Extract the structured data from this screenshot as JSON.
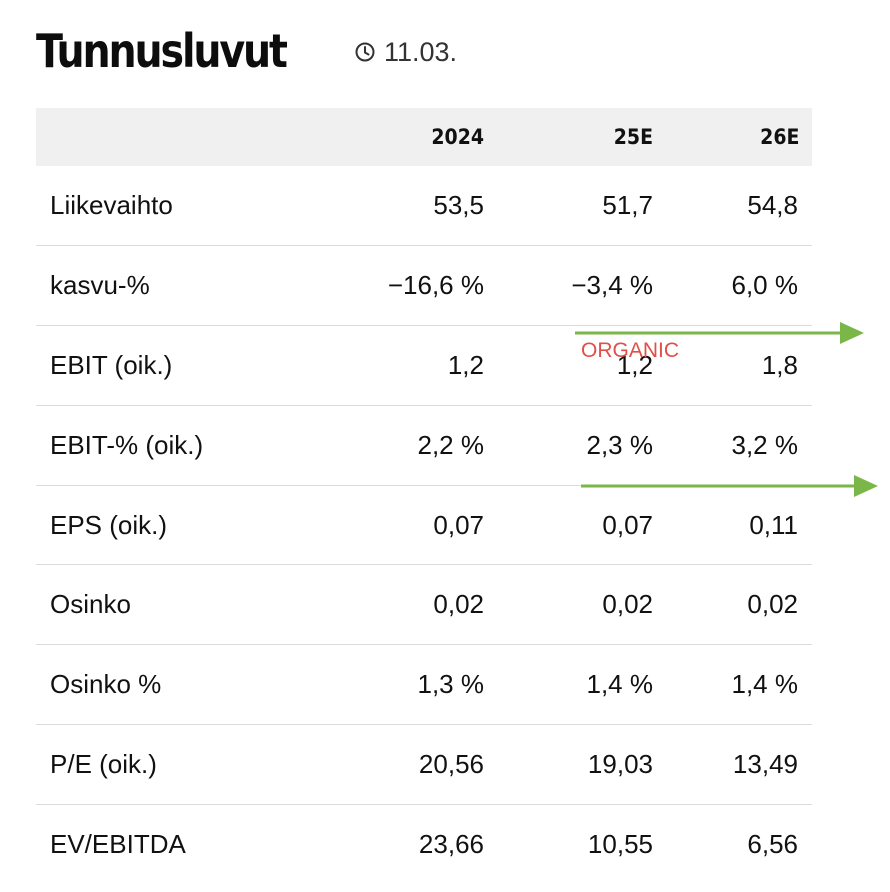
{
  "header": {
    "title": "Tunnusluvut",
    "date": "11.03.",
    "clock_icon": "clock-icon"
  },
  "table": {
    "columns": [
      "",
      "2024",
      "25E",
      "26E"
    ],
    "rows": [
      {
        "label": "Liikevaihto",
        "values": [
          "53,5",
          "51,7",
          "54,8"
        ]
      },
      {
        "label": "kasvu-%",
        "values": [
          "−16,6 %",
          "−3,4 %",
          "6,0 %"
        ]
      },
      {
        "label": "EBIT (oik.)",
        "values": [
          "1,2",
          "1,2",
          "1,8"
        ]
      },
      {
        "label": "EBIT-% (oik.)",
        "values": [
          "2,2 %",
          "2,3 %",
          "3,2 %"
        ]
      },
      {
        "label": "EPS (oik.)",
        "values": [
          "0,07",
          "0,07",
          "0,11"
        ]
      },
      {
        "label": "Osinko",
        "values": [
          "0,02",
          "0,02",
          "0,02"
        ]
      },
      {
        "label": "Osinko %",
        "values": [
          "1,3 %",
          "1,4 %",
          "1,4 %"
        ]
      },
      {
        "label": "P/E (oik.)",
        "values": [
          "20,56",
          "19,03",
          "13,49"
        ]
      },
      {
        "label": "EV/EBITDA",
        "values": [
          "23,66",
          "10,55",
          "6,56"
        ]
      }
    ]
  },
  "annotations": {
    "organic_label": "ORGANIC",
    "arrow_color": "#7ab648",
    "label_color": "#e0504a"
  }
}
